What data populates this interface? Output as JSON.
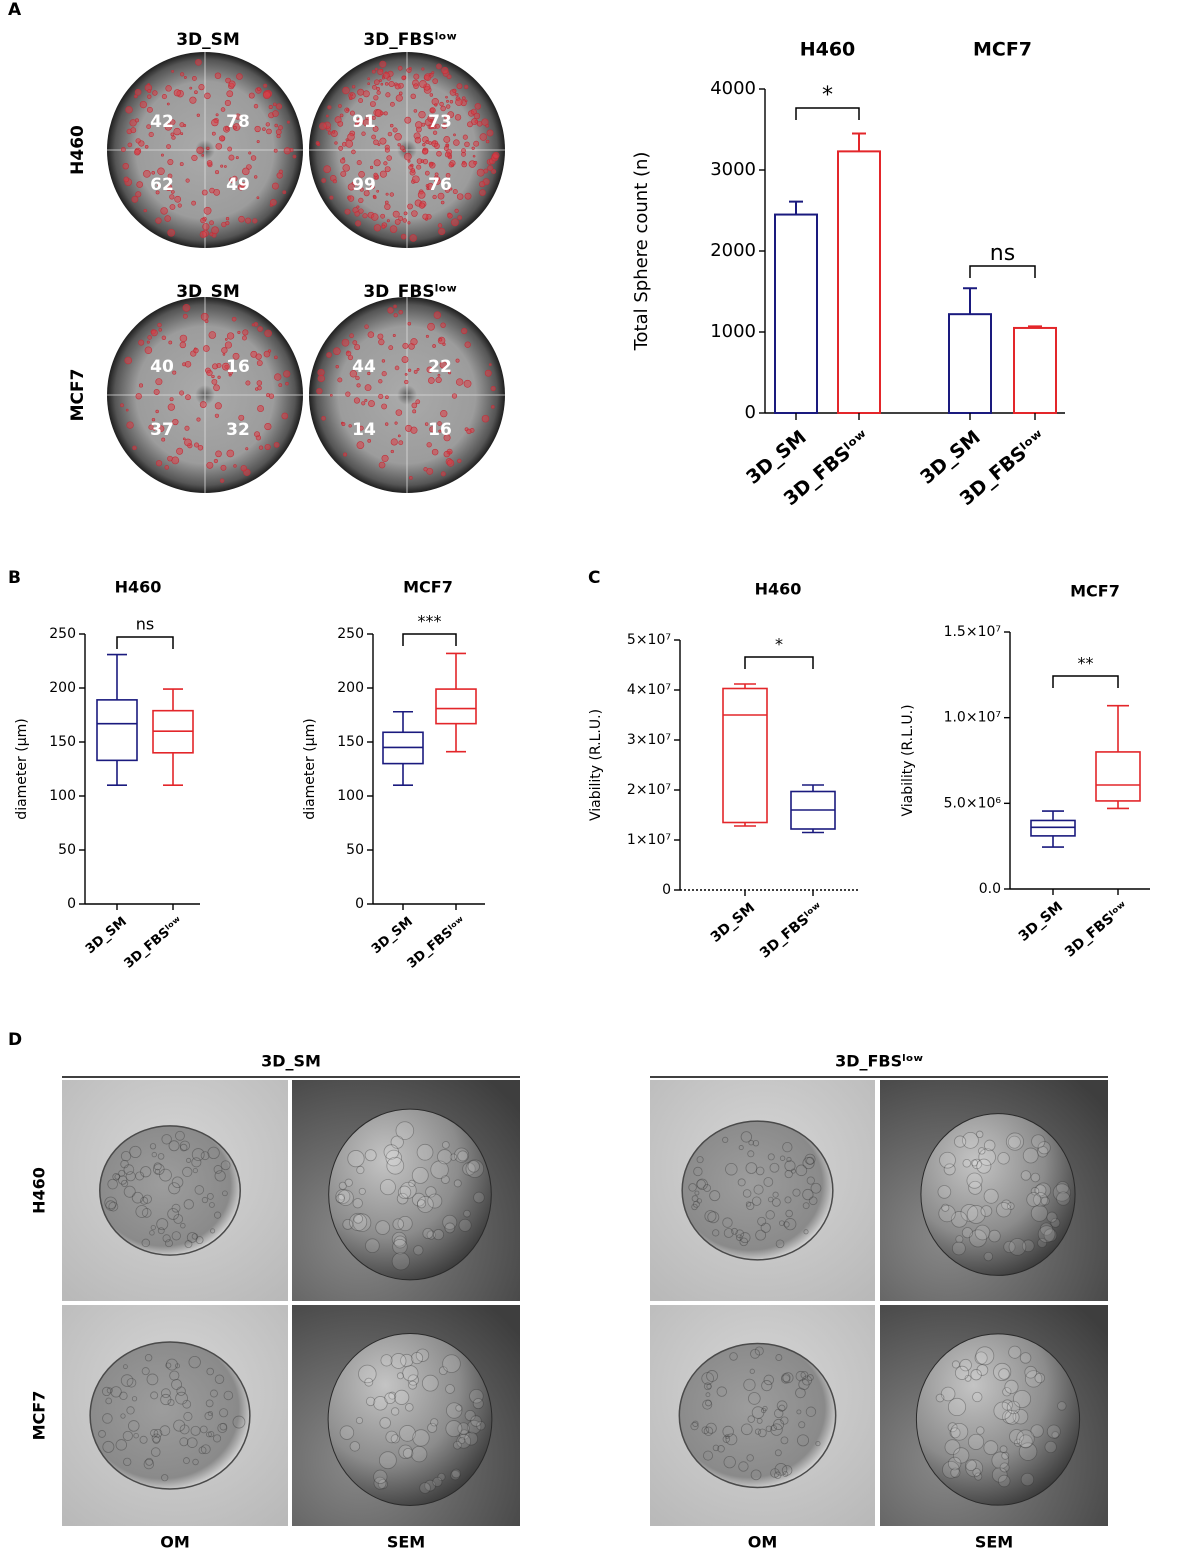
{
  "panel_labels": [
    "A",
    "B",
    "C",
    "D"
  ],
  "wells": {
    "rows": [
      {
        "name": "H460",
        "columns": [
          {
            "header": "3D_SM",
            "counts": [
              42,
              78,
              62,
              49
            ]
          },
          {
            "header": "3D_FBSˡᵒʷ",
            "counts": [
              91,
              73,
              99,
              76
            ]
          }
        ]
      },
      {
        "name": "MCF7",
        "columns": [
          {
            "header": "3D_SM",
            "counts": [
              40,
              16,
              37,
              32
            ]
          },
          {
            "header": "3D_FBSˡᵒʷ",
            "counts": [
              44,
              22,
              14,
              16
            ]
          }
        ]
      }
    ]
  },
  "chart_data": [
    {
      "type": "bar",
      "ylabel": "Total Sphere count (n)",
      "ylim": [
        0,
        4000
      ],
      "yticks": [
        0,
        1000,
        2000,
        3000,
        4000
      ],
      "colors": [
        "#1a1a7e",
        "#e3262a"
      ],
      "groups": [
        {
          "name": "H460",
          "categories": [
            "3D_SM",
            "3D_FBSˡᵒʷ"
          ],
          "values": [
            2450,
            3230
          ],
          "errors": [
            160,
            220
          ],
          "significance": "*"
        },
        {
          "name": "MCF7",
          "categories": [
            "3D_SM",
            "3D_FBSˡᵒʷ"
          ],
          "values": [
            1220,
            1050
          ],
          "errors": [
            320,
            20
          ],
          "significance": "ns"
        }
      ]
    },
    {
      "type": "box",
      "title": "H460",
      "ylabel": "diameter (μm)",
      "ylim": [
        0,
        250
      ],
      "yticks": [
        0,
        50,
        100,
        150,
        200,
        250
      ],
      "categories": [
        "3D_SM",
        "3D_FBSˡᵒʷ"
      ],
      "colors": [
        "#1a1a7e",
        "#e3262a"
      ],
      "significance": "ns",
      "boxes": [
        {
          "min": 110,
          "q1": 133,
          "median": 167,
          "q3": 189,
          "max": 231
        },
        {
          "min": 110,
          "q1": 140,
          "median": 160,
          "q3": 179,
          "max": 199
        }
      ]
    },
    {
      "type": "box",
      "title": "MCF7",
      "ylabel": "diameter (μm)",
      "ylim": [
        0,
        250
      ],
      "yticks": [
        0,
        50,
        100,
        150,
        200,
        250
      ],
      "categories": [
        "3D_SM",
        "3D_FBSˡᵒʷ"
      ],
      "colors": [
        "#1a1a7e",
        "#e3262a"
      ],
      "significance": "***",
      "boxes": [
        {
          "min": 110,
          "q1": 130,
          "median": 145,
          "q3": 159,
          "max": 178
        },
        {
          "min": 141,
          "q1": 167,
          "median": 181,
          "q3": 199,
          "max": 232
        }
      ]
    },
    {
      "type": "box",
      "title": "H460",
      "ylabel": "Viability (R.L.U.)",
      "ylim": [
        0,
        50000000
      ],
      "yticks": [
        0,
        {
          "value": 10000000,
          "label": "1×10⁷"
        },
        {
          "value": 20000000,
          "label": "2×10⁷"
        },
        {
          "value": 30000000,
          "label": "3×10⁷"
        },
        {
          "value": 40000000,
          "label": "4×10⁷"
        },
        {
          "value": 50000000,
          "label": "5×10⁷"
        }
      ],
      "categories": [
        "3D_SM",
        "3D_FBSˡᵒʷ"
      ],
      "colors": [
        "#e3262a",
        "#1a1a7e"
      ],
      "significance": "*",
      "boxes": [
        {
          "min": 12800000,
          "q1": 13500000,
          "median": 35000000,
          "q3": 40300000,
          "max": 41200000
        },
        {
          "min": 11500000,
          "q1": 12200000,
          "median": 16000000,
          "q3": 19700000,
          "max": 21000000
        }
      ]
    },
    {
      "type": "box",
      "title": "MCF7",
      "ylabel": "Viability (R.L.U.)",
      "ylim": [
        0,
        15000000
      ],
      "yticks": [
        {
          "value": 0,
          "label": "0.0"
        },
        {
          "value": 5000000,
          "label": "5.0×10⁶"
        },
        {
          "value": 10000000,
          "label": "1.0×10⁷"
        },
        {
          "value": 15000000,
          "label": "1.5×10⁷"
        }
      ],
      "categories": [
        "3D_SM",
        "3D_FBSˡᵒʷ"
      ],
      "colors": [
        "#1a1a7e",
        "#e3262a"
      ],
      "significance": "**",
      "boxes": [
        {
          "min": 2450000,
          "q1": 3100000,
          "median": 3600000,
          "q3": 4000000,
          "max": 4550000
        },
        {
          "min": 4700000,
          "q1": 5140000,
          "median": 6070000,
          "q3": 8000000,
          "max": 10700000
        }
      ]
    }
  ],
  "micrographs": {
    "headers": [
      "3D_SM",
      "3D_FBSˡᵒʷ"
    ],
    "rows": [
      "H460",
      "MCF7"
    ],
    "columns": [
      "OM",
      "SEM",
      "OM",
      "SEM"
    ]
  }
}
